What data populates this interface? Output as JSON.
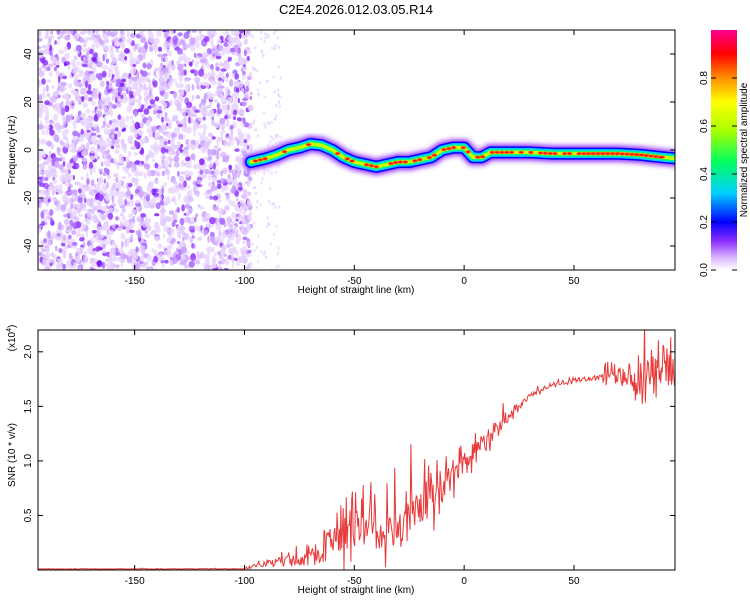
{
  "title": "C2E4.2026.012.03.05.R14",
  "chart_data": [
    {
      "type": "heatmap",
      "xlabel": "Height of straight line (km)",
      "ylabel": "Frequency (Hz)",
      "xlim": [
        -194,
        96
      ],
      "ylim": [
        -50,
        50
      ],
      "x_ticks": [
        -150,
        -100,
        -50,
        0,
        50
      ],
      "y_ticks": [
        -40,
        -20,
        0,
        20,
        40
      ],
      "noise_region": {
        "x_range": [
          -194,
          -97
        ],
        "y_range": [
          -50,
          50
        ]
      },
      "signal_ridge": {
        "x": [
          -97,
          -90,
          -85,
          -80,
          -75,
          -70,
          -65,
          -60,
          -55,
          -50,
          -45,
          -40,
          -35,
          -30,
          -25,
          -20,
          -15,
          -10,
          -5,
          0,
          4,
          8,
          12,
          20,
          30,
          40,
          50,
          60,
          70,
          80,
          90,
          96
        ],
        "y": [
          -5,
          -3.5,
          -2,
          0,
          1,
          2.5,
          2,
          0,
          -3,
          -5,
          -6,
          -7,
          -6,
          -5,
          -5,
          -4,
          -3,
          0,
          1,
          1,
          -3,
          -3,
          -1,
          -1,
          -1,
          -1.5,
          -1.5,
          -1.5,
          -1.5,
          -2,
          -3,
          -3.5
        ]
      },
      "colorbar": {
        "label": "Normalized spectral amplitude",
        "ticks": [
          0.0,
          0.2,
          0.4,
          0.6,
          0.8
        ],
        "range": [
          0,
          1
        ],
        "colors": [
          "#ffffff",
          "#dcb8ff",
          "#8c2eff",
          "#0000ff",
          "#00d0ff",
          "#00ff60",
          "#a8ff00",
          "#ffff00",
          "#ff9000",
          "#ff0000",
          "#ff0090"
        ]
      }
    },
    {
      "type": "line",
      "xlabel": "Height of straight line (km)",
      "ylabel": "SNR (10 * v/v)",
      "y_multiplier": "(x10",
      "y_multiplier_exp": "4",
      "y_multiplier_close": ")",
      "xlim": [
        -194,
        96
      ],
      "ylim": [
        0,
        2.2
      ],
      "x_ticks": [
        -150,
        -100,
        -50,
        0,
        50
      ],
      "y_ticks": [
        0.5,
        1.0,
        1.5,
        2.0
      ],
      "color": "#e83a3a",
      "envelope": {
        "x": [
          -194,
          -100,
          -90,
          -80,
          -70,
          -60,
          -50,
          -40,
          -30,
          -20,
          -10,
          0,
          10,
          20,
          30,
          40,
          50,
          60,
          70,
          80,
          90,
          96
        ],
        "y": [
          0.01,
          0.01,
          0.06,
          0.1,
          0.1,
          0.3,
          0.5,
          0.4,
          0.35,
          0.55,
          0.75,
          1.0,
          1.2,
          1.4,
          1.6,
          1.7,
          1.74,
          1.76,
          1.77,
          1.8,
          1.8,
          1.78
        ]
      },
      "noise": {
        "x": [
          -194,
          -100,
          -90,
          -80,
          -70,
          -60,
          -50,
          -40,
          -30,
          -20,
          -10,
          0,
          10,
          20,
          30,
          40,
          50,
          60,
          70,
          80,
          90,
          96
        ],
        "a": [
          0.003,
          0.003,
          0.04,
          0.06,
          0.12,
          0.35,
          0.45,
          0.35,
          0.3,
          0.3,
          0.25,
          0.18,
          0.15,
          0.06,
          0.04,
          0.03,
          0.03,
          0.04,
          0.12,
          0.3,
          0.25,
          0.15
        ]
      }
    }
  ]
}
